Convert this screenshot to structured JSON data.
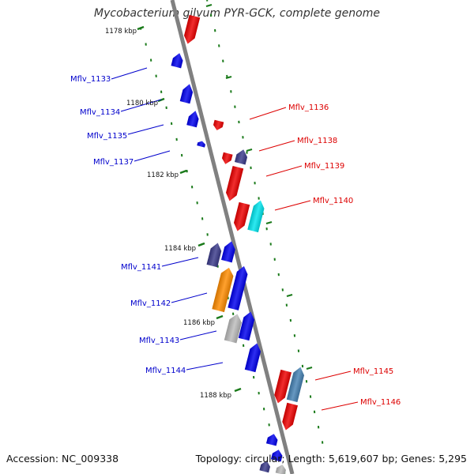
{
  "title": "Mycobacterium gilvum PYR-GCK, complete genome",
  "footer": {
    "accession": "Accession: NC_009338",
    "summary": "Topology: circular; Length: 5,619,607 bp; Genes: 5,295"
  },
  "colors": {
    "backbone": "#888888",
    "tick": "#1a7a1a",
    "label_left": "#0000cc",
    "label_right": "#dd0000",
    "blue": "#0000ee",
    "red": "#ee0000",
    "slate": "#3a3a8a",
    "orange": "#ff8c00",
    "cyan": "#00e5ee",
    "gray": "#bbbbbb",
    "steelblue": "#4682b4"
  },
  "ticks": [
    {
      "label": "1178 kbp"
    },
    {
      "label": "1180 kbp"
    },
    {
      "label": "1182 kbp"
    },
    {
      "label": "1184 kbp"
    },
    {
      "label": "1186 kbp"
    },
    {
      "label": "1188 kbp"
    }
  ],
  "left_labels": [
    {
      "text": "Mflv_1133"
    },
    {
      "text": "Mflv_1134"
    },
    {
      "text": "Mflv_1135"
    },
    {
      "text": "Mflv_1137"
    },
    {
      "text": "Mflv_1141"
    },
    {
      "text": "Mflv_1142"
    },
    {
      "text": "Mflv_1143"
    },
    {
      "text": "Mflv_1144"
    }
  ],
  "right_labels": [
    {
      "text": "Mflv_1136"
    },
    {
      "text": "Mflv_1138"
    },
    {
      "text": "Mflv_1139"
    },
    {
      "text": "Mflv_1140"
    },
    {
      "text": "Mflv_1145"
    },
    {
      "text": "Mflv_1146"
    }
  ]
}
